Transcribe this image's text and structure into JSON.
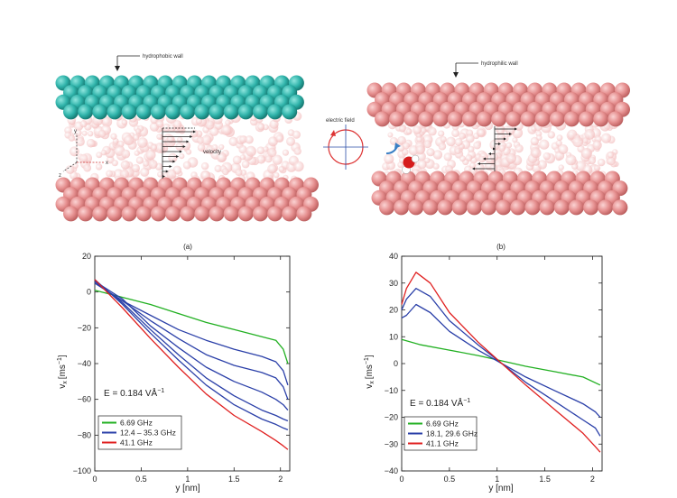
{
  "top": {
    "left_wall_label": "hydrophobic wall",
    "right_wall_label": "hydrophilic wall",
    "velocity_label": "velocity",
    "field_label": "electric field",
    "axis_y": "y",
    "axis_x": "x",
    "axis_z": "z",
    "colors": {
      "hydrophobic": "#2fb3aa",
      "hydrophilic": "#e58e8e",
      "water": "#f3b8b8"
    }
  },
  "chart_data": [
    {
      "type": "line",
      "title": "(a)",
      "xlabel": "y [nm]",
      "ylabel": "v",
      "ylabel_sub": "x",
      "ylabel_unit": "[ms",
      "ylabel_sup": "−1",
      "ylabel_close": "]",
      "xlim": [
        0,
        2.1
      ],
      "ylim": [
        -100,
        20
      ],
      "xticks": [
        0,
        0.5,
        1,
        1.5,
        2
      ],
      "xtick_labels": [
        "0",
        "0.5",
        "1",
        "1.5",
        "2"
      ],
      "yticks": [
        -100,
        -80,
        -60,
        -40,
        -20,
        0,
        20
      ],
      "ytick_labels": [
        "−100",
        "−80",
        "−60",
        "−40",
        "−20",
        "0",
        "20"
      ],
      "field_text": "E = 0.184 VÅ",
      "field_sup": "−1",
      "legend_position": "bottom-left",
      "legend": [
        {
          "label": "6.69 GHz",
          "color": "#22b022"
        },
        {
          "label": "12.4 – 35.3 GHz",
          "color": "#2a3fa8"
        },
        {
          "label": "41.1 GHz",
          "color": "#e02020"
        }
      ],
      "series": [
        {
          "color": "#22b022",
          "x": [
            0,
            0.3,
            0.6,
            0.9,
            1.2,
            1.5,
            1.8,
            1.95,
            2.03,
            2.08
          ],
          "y": [
            1,
            -3,
            -7,
            -12,
            -17,
            -21,
            -25,
            -27,
            -32,
            -40
          ]
        },
        {
          "color": "#2a3fa8",
          "x": [
            0,
            0.3,
            0.6,
            0.9,
            1.2,
            1.5,
            1.8,
            1.95,
            2.03,
            2.08
          ],
          "y": [
            5,
            -5,
            -13,
            -21,
            -27,
            -32,
            -36,
            -39,
            -44,
            -52
          ]
        },
        {
          "color": "#2a3fa8",
          "x": [
            0,
            0.3,
            0.6,
            0.9,
            1.2,
            1.5,
            1.8,
            1.95,
            2.03,
            2.08
          ],
          "y": [
            5,
            -5,
            -16,
            -26,
            -35,
            -41,
            -45,
            -48,
            -53,
            -60
          ]
        },
        {
          "color": "#2a3fa8",
          "x": [
            0,
            0.3,
            0.6,
            0.9,
            1.2,
            1.5,
            1.8,
            1.95,
            2.03,
            2.08
          ],
          "y": [
            6,
            -4,
            -19,
            -31,
            -42,
            -50,
            -56,
            -60,
            -63,
            -66
          ]
        },
        {
          "color": "#2a3fa8",
          "x": [
            0,
            0.3,
            0.6,
            0.9,
            1.2,
            1.5,
            1.8,
            1.95,
            2.03,
            2.08
          ],
          "y": [
            6,
            -6,
            -21,
            -35,
            -48,
            -58,
            -66,
            -69,
            -71,
            -72
          ]
        },
        {
          "color": "#2a3fa8",
          "x": [
            0,
            0.3,
            0.6,
            0.9,
            1.2,
            1.5,
            1.8,
            1.95,
            2.03,
            2.08
          ],
          "y": [
            7,
            -7,
            -23,
            -38,
            -52,
            -63,
            -71,
            -74,
            -76,
            -77
          ]
        },
        {
          "color": "#e02020",
          "x": [
            0,
            0.3,
            0.6,
            0.9,
            1.2,
            1.5,
            1.8,
            1.95,
            2.03,
            2.08
          ],
          "y": [
            7,
            -9,
            -26,
            -42,
            -57,
            -69,
            -78,
            -83,
            -86,
            -88
          ]
        }
      ]
    },
    {
      "type": "line",
      "title": "(b)",
      "xlabel": "y [nm]",
      "ylabel": "v",
      "ylabel_sub": "x",
      "ylabel_unit": "[ms",
      "ylabel_sup": "−1",
      "ylabel_close": "]",
      "xlim": [
        0,
        2.1
      ],
      "ylim": [
        -40,
        40
      ],
      "xticks": [
        0,
        0.5,
        1,
        1.5,
        2
      ],
      "xtick_labels": [
        "0",
        "0.5",
        "1",
        "1.5",
        "2"
      ],
      "yticks": [
        -40,
        -30,
        -20,
        -10,
        0,
        10,
        20,
        30,
        40
      ],
      "ytick_labels": [
        "−40",
        "−30",
        "−20",
        "−10",
        "0",
        "10",
        "20",
        "30",
        "40"
      ],
      "field_text": "E = 0.184 VÅ",
      "field_sup": "−1",
      "legend_position": "bottom-left",
      "legend": [
        {
          "label": "6.69 GHz",
          "color": "#22b022"
        },
        {
          "label": "18.1, 29.6 GHz",
          "color": "#2a3fa8"
        },
        {
          "label": "41.1 GHz",
          "color": "#e02020"
        }
      ],
      "series": [
        {
          "color": "#22b022",
          "x": [
            0,
            0.2,
            0.5,
            0.8,
            1.05,
            1.3,
            1.6,
            1.9,
            2.08
          ],
          "y": [
            9,
            7,
            5,
            3,
            1,
            -1,
            -3,
            -5,
            -8
          ]
        },
        {
          "color": "#2a3fa8",
          "x": [
            0,
            0.05,
            0.15,
            0.3,
            0.5,
            0.8,
            1.05,
            1.3,
            1.6,
            1.9,
            2.03,
            2.08
          ],
          "y": [
            17,
            18,
            22,
            19,
            12,
            5,
            0,
            -5,
            -10,
            -15,
            -18,
            -20
          ]
        },
        {
          "color": "#2a3fa8",
          "x": [
            0,
            0.05,
            0.15,
            0.3,
            0.5,
            0.8,
            1.05,
            1.3,
            1.6,
            1.9,
            2.03,
            2.08
          ],
          "y": [
            20,
            24,
            28,
            25,
            16,
            7,
            0,
            -7,
            -14,
            -21,
            -24,
            -27
          ]
        },
        {
          "color": "#e02020",
          "x": [
            0,
            0.05,
            0.15,
            0.3,
            0.5,
            0.8,
            1.05,
            1.3,
            1.6,
            1.9,
            2.03,
            2.08
          ],
          "y": [
            22,
            28,
            34,
            30,
            19,
            8,
            0,
            -8,
            -17,
            -26,
            -31,
            -33
          ]
        }
      ]
    }
  ]
}
